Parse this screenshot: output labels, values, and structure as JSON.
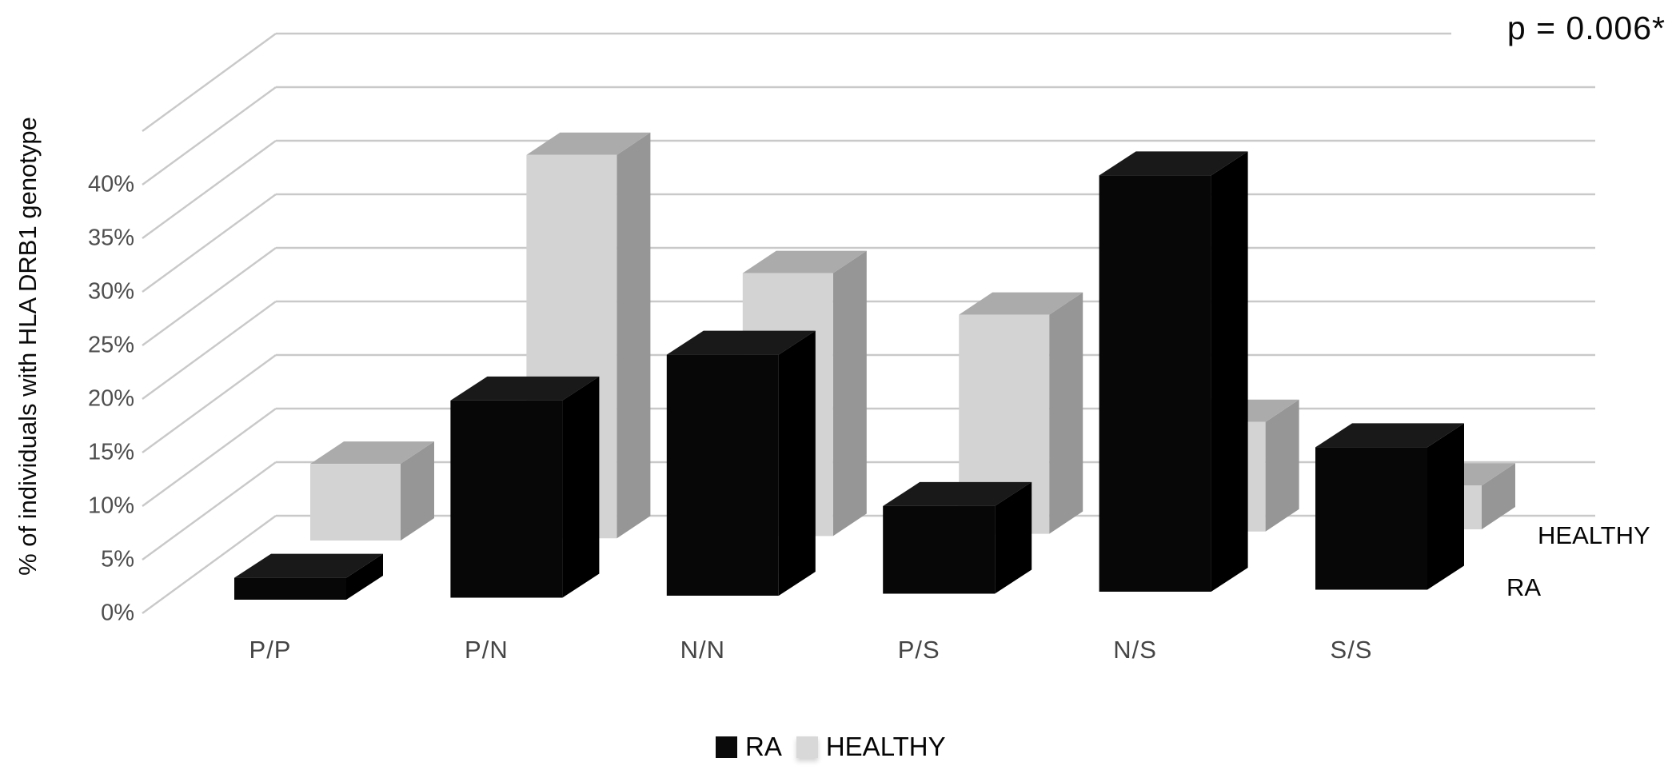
{
  "annotation": {
    "p_value": "p = 0.006*"
  },
  "y_axis": {
    "title": "% of individuals with HLA DRB1 genotype",
    "tick_labels": [
      "0%",
      "5%",
      "10%",
      "15%",
      "20%",
      "25%",
      "30%",
      "35%",
      "40%"
    ]
  },
  "x_axis": {
    "categories": [
      "P/P",
      "P/N",
      "N/N",
      "P/S",
      "N/S",
      "S/S"
    ]
  },
  "depth_axis": {
    "back_label": "HEALTHY",
    "front_label": "RA"
  },
  "legend": {
    "items": [
      {
        "label": "RA",
        "color": "#0a0a0a"
      },
      {
        "label": "HEALTHY",
        "color": "#d8d8d8"
      }
    ]
  },
  "colors": {
    "background": "#ffffff",
    "gridline": "#c9c9c9",
    "ra_front": "#070707",
    "ra_top": "#191919",
    "ra_side": "#000000",
    "healthy_front": "#d3d3d3",
    "healthy_top": "#ababab",
    "healthy_side": "#969696"
  },
  "chart_data": {
    "type": "bar",
    "style": "3d-clustered-column",
    "title": "",
    "xlabel": "",
    "ylabel": "% of individuals with HLA DRB1 genotype",
    "ylim": [
      0,
      45
    ],
    "ytick_step_percent": 5,
    "grid": true,
    "legend_position": "bottom",
    "annotation": "p = 0.006*",
    "values_are_approximate": true,
    "categories": [
      "P/P",
      "P/N",
      "N/N",
      "P/S",
      "N/S",
      "S/S"
    ],
    "series": [
      {
        "name": "RA",
        "color": "#070707",
        "values": [
          2,
          18,
          22,
          8,
          38,
          13
        ]
      },
      {
        "name": "HEALTHY",
        "color": "#d3d3d3",
        "values": [
          7,
          35,
          24,
          20,
          10,
          4
        ]
      }
    ]
  }
}
